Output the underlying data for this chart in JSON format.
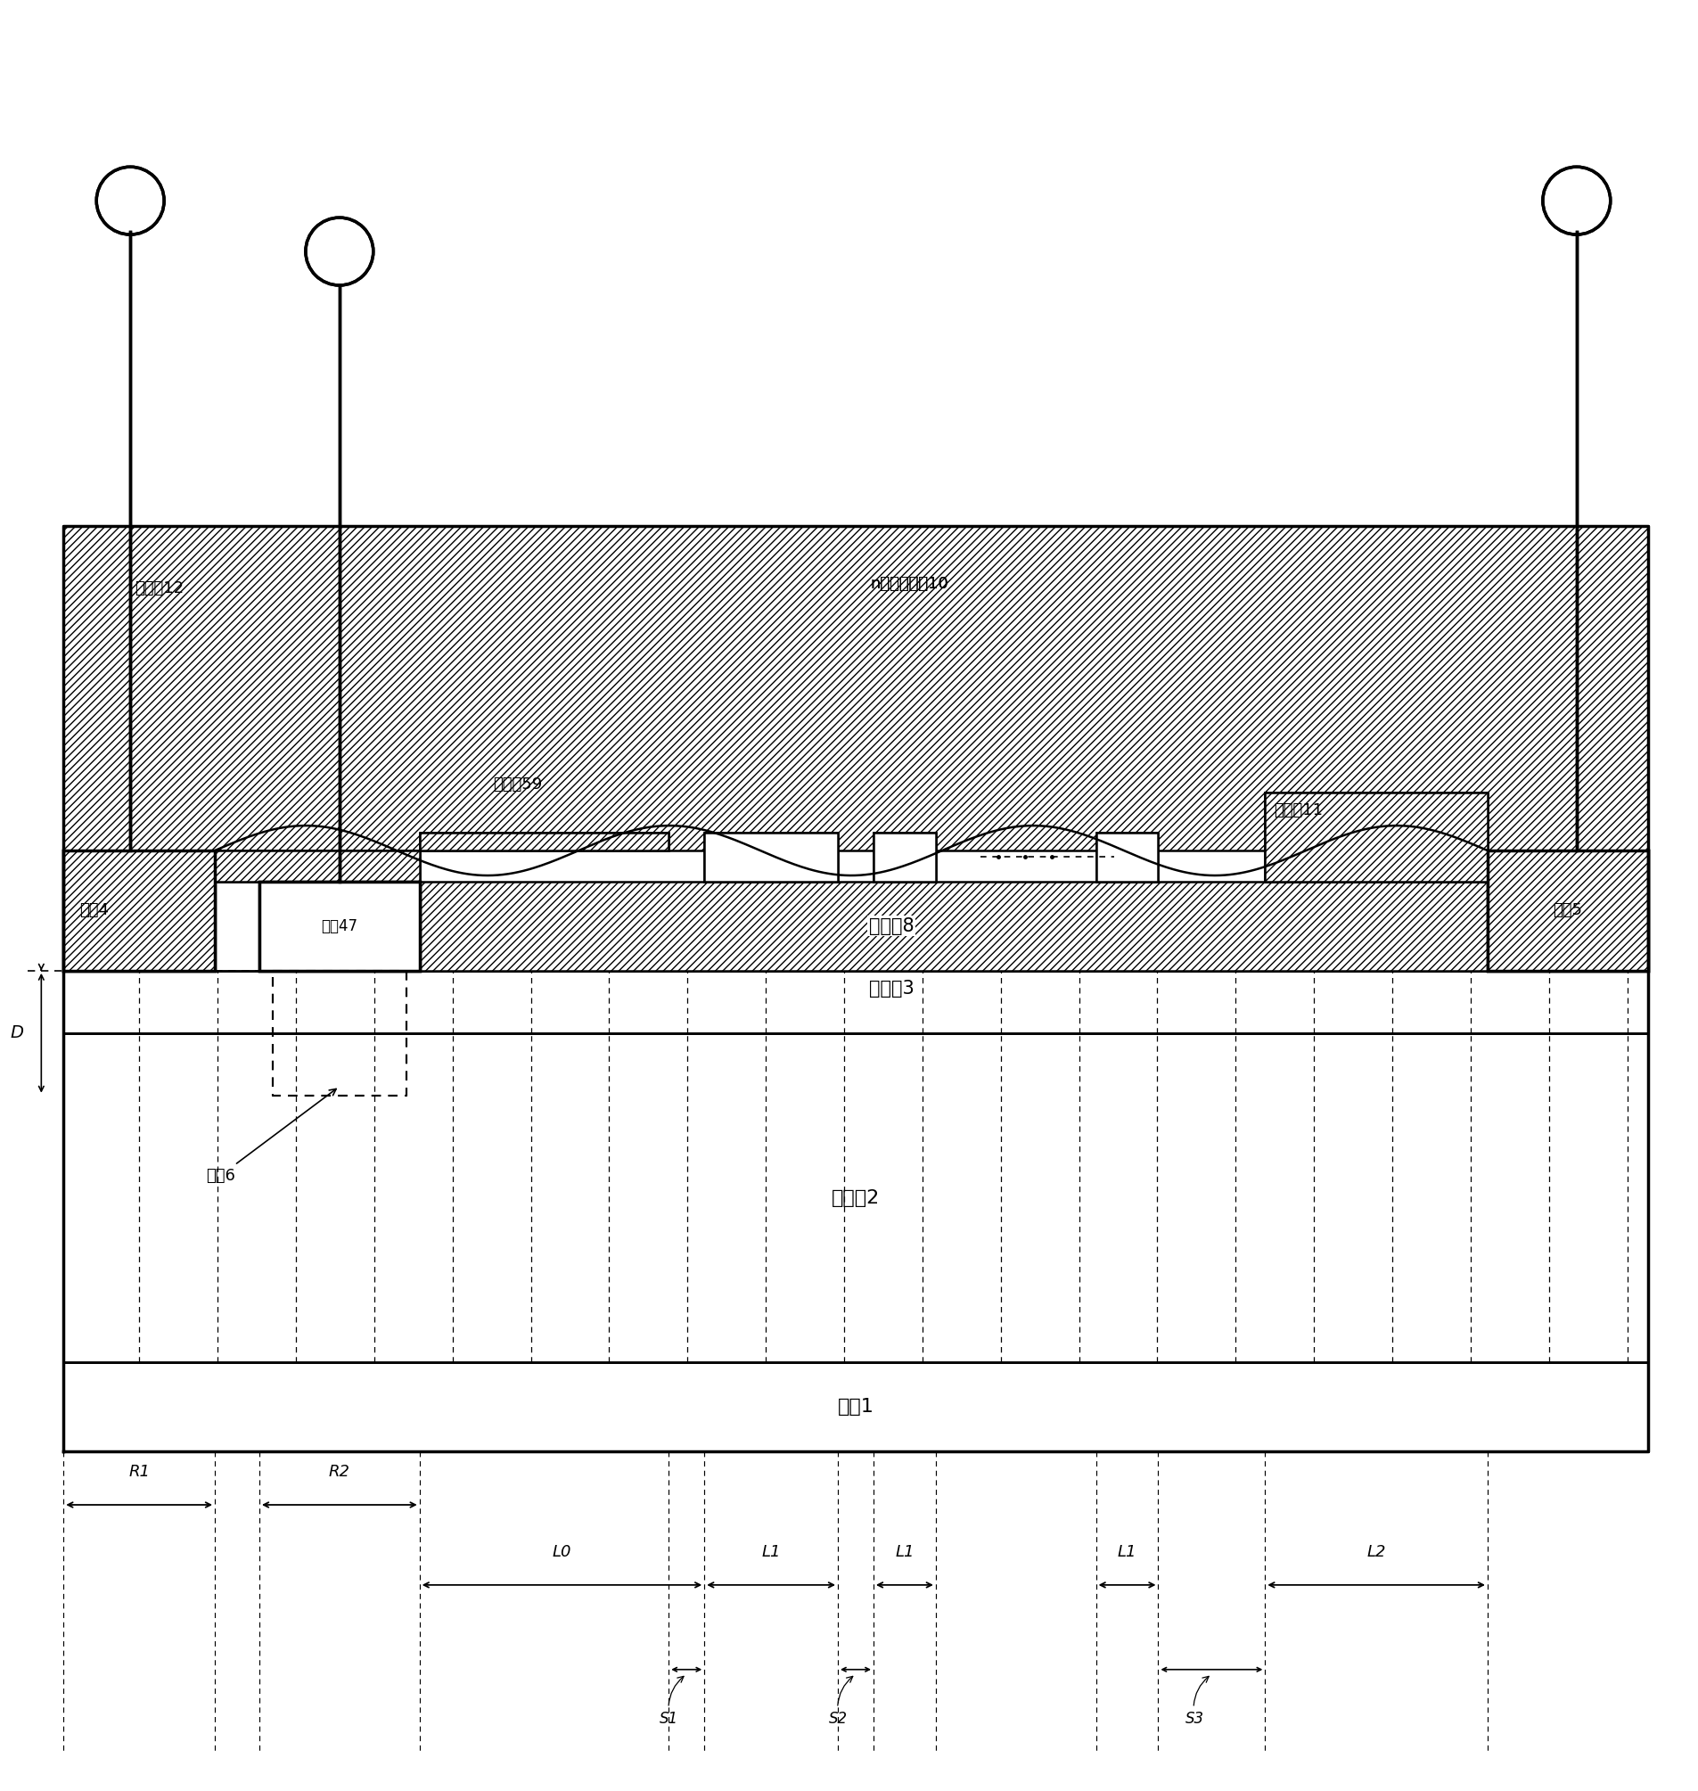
{
  "fig_width": 19.05,
  "fig_height": 20.09,
  "bg_color": "#ffffff",
  "labels": {
    "source": "源来4",
    "drain": "漏来5",
    "barrier": "势垒卹3",
    "transition": "过渡卹2",
    "substrate": "脚块1",
    "passivation": "钝化卹8",
    "source_fp": "源场杴59",
    "floating_fp": "n个浮空场杴10",
    "drain_fp": "漏场杴11",
    "protection": "保护尒12",
    "trench_gate": "槽标47",
    "groove": "凹槽6",
    "R1": "R1",
    "R2": "R2",
    "L0": "L0",
    "L1": "L1",
    "L2": "L2",
    "S1": "S1",
    "S2": "S2",
    "S3": "S3",
    "D": "D"
  }
}
